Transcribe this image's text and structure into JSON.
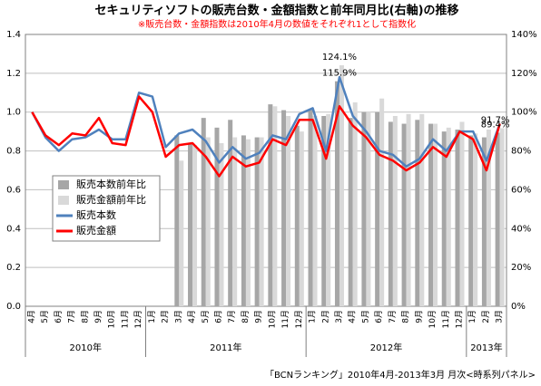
{
  "chart_data": {
    "type": "bar-line",
    "title": "セキュリティソフトの販売台数・金額指数と前年同月比(右軸)の推移",
    "subtitle": "※販売台数・金額指数は2010年4月の数値をそれぞれ1として指数化",
    "source": "「BCNランキング」2010年4月-2013年3月 月次<時系列パネル>",
    "categories": [
      "4月",
      "5月",
      "6月",
      "7月",
      "8月",
      "9月",
      "10月",
      "11月",
      "12月",
      "1月",
      "2月",
      "3月",
      "4月",
      "5月",
      "6月",
      "7月",
      "8月",
      "9月",
      "10月",
      "11月",
      "12月",
      "1月",
      "2月",
      "3月",
      "4月",
      "5月",
      "6月",
      "7月",
      "8月",
      "9月",
      "10月",
      "11月",
      "12月",
      "1月",
      "2月",
      "3月"
    ],
    "year_groups": [
      {
        "label": "2010年",
        "months": 9
      },
      {
        "label": "2011年",
        "months": 12
      },
      {
        "label": "2012年",
        "months": 12
      },
      {
        "label": "2013年",
        "months": 3
      }
    ],
    "ylim": [
      0,
      1.4
    ],
    "yticks": [
      {
        "value": 0,
        "label": "0.0"
      },
      0.2,
      0.4,
      0.6,
      0.8,
      {
        "value": 1,
        "label": "1.0"
      },
      1.2,
      1.4
    ],
    "y2lim": [
      0,
      140
    ],
    "y2ticks": [
      {
        "value": 0,
        "label": "0%"
      },
      {
        "value": 20,
        "label": "20%"
      },
      {
        "value": 40,
        "label": "40%"
      },
      {
        "value": 60,
        "label": "60%"
      },
      {
        "value": 80,
        "label": "80%"
      },
      {
        "value": 100,
        "label": "100%"
      },
      {
        "value": 120,
        "label": "120%"
      },
      {
        "value": 140,
        "label": "140%"
      }
    ],
    "grid": true,
    "series": [
      {
        "name": "販売本数前年比",
        "kind": "bar",
        "axis": "y2",
        "color": "#a6a6a6",
        "values": [
          null,
          null,
          null,
          null,
          null,
          null,
          null,
          null,
          null,
          null,
          null,
          88,
          84,
          97,
          92,
          96,
          88,
          87,
          104,
          101,
          93,
          101,
          98,
          115.9,
          97,
          100,
          100,
          95,
          94,
          96,
          94,
          90,
          91,
          88,
          87,
          89.4
        ],
        "value_labels": [
          null,
          null,
          null,
          null,
          null,
          null,
          null,
          null,
          null,
          null,
          null,
          null,
          null,
          null,
          null,
          null,
          null,
          null,
          null,
          null,
          null,
          null,
          null,
          "115.9%",
          null,
          null,
          null,
          null,
          null,
          null,
          null,
          null,
          null,
          null,
          null,
          "89.4%"
        ]
      },
      {
        "name": "販売金額前年比",
        "kind": "bar",
        "axis": "y2",
        "color": "#d9d9d9",
        "values": [
          null,
          null,
          null,
          null,
          null,
          null,
          null,
          null,
          null,
          null,
          null,
          75,
          83,
          87,
          84,
          87,
          86,
          87,
          103,
          98,
          90,
          98,
          99,
          124.1,
          105,
          100,
          107,
          98,
          99,
          99,
          94,
          92,
          95,
          89,
          91,
          91.7
        ],
        "value_labels": [
          null,
          null,
          null,
          null,
          null,
          null,
          null,
          null,
          null,
          null,
          null,
          null,
          null,
          null,
          null,
          null,
          null,
          null,
          null,
          null,
          null,
          null,
          null,
          "124.1%",
          null,
          null,
          null,
          null,
          null,
          null,
          null,
          null,
          null,
          null,
          null,
          "91.7%"
        ]
      },
      {
        "name": "販売本数",
        "kind": "line",
        "color": "#4f81bd",
        "values": [
          1.0,
          0.87,
          0.8,
          0.86,
          0.87,
          0.91,
          0.86,
          0.86,
          1.1,
          1.08,
          0.82,
          0.89,
          0.91,
          0.85,
          0.74,
          0.82,
          0.76,
          0.79,
          0.88,
          0.86,
          0.99,
          1.02,
          0.8,
          1.18,
          0.98,
          0.9,
          0.8,
          0.78,
          0.72,
          0.76,
          0.86,
          0.8,
          0.9,
          0.9,
          0.75,
          0.94
        ]
      },
      {
        "name": "販売金額",
        "kind": "line",
        "color": "#ff0000",
        "values": [
          1.0,
          0.88,
          0.83,
          0.89,
          0.88,
          0.97,
          0.84,
          0.83,
          1.08,
          1.0,
          0.77,
          0.83,
          0.84,
          0.77,
          0.67,
          0.77,
          0.72,
          0.74,
          0.86,
          0.83,
          0.96,
          0.96,
          0.76,
          1.03,
          0.93,
          0.87,
          0.78,
          0.75,
          0.7,
          0.74,
          0.82,
          0.77,
          0.9,
          0.86,
          0.7,
          0.94
        ]
      }
    ]
  }
}
